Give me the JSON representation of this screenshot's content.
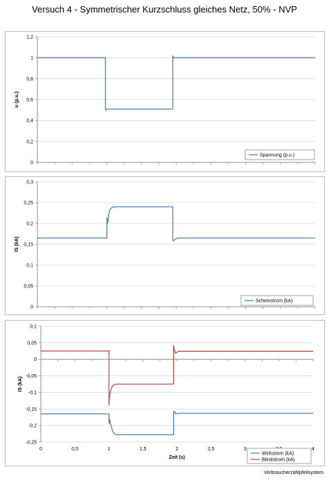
{
  "title": "Versuch 4 - Symmetrischer Kurzschluss gleiches Netz, 50% - NVP",
  "footer": "Verbraucherzählpfeilsystem",
  "colors": {
    "blue": "#4f81bd",
    "red": "#c0504d",
    "grid": "#d9d9d9",
    "axis": "#8c8c8c"
  },
  "chart_data": [
    {
      "type": "line",
      "ylabel": "u (p.u.)",
      "xlabel": "",
      "xlim": [
        0,
        4
      ],
      "ylim": [
        0,
        1.2
      ],
      "yticks": [
        "0",
        "0,2",
        "0,4",
        "0,6",
        "0,8",
        "1",
        "1,2"
      ],
      "xticks": [],
      "legend_position": "bottom-right",
      "series": [
        {
          "name": "Spannung (p.u.)",
          "color": "#4f81bd",
          "x": [
            0,
            0.98,
            0.98,
            0.99,
            0.99,
            1.95,
            1.95,
            1.96,
            1.96,
            4.0
          ],
          "y": [
            1.0,
            1.0,
            0.51,
            0.5,
            0.51,
            0.51,
            1.02,
            1.0,
            1.0,
            1.0
          ]
        }
      ]
    },
    {
      "type": "line",
      "ylabel": "IS (kA)",
      "xlabel": "",
      "xlim": [
        0,
        4
      ],
      "ylim": [
        0,
        0.3
      ],
      "yticks": [
        "0",
        "0,05",
        "0,1",
        "0,15",
        "0,2",
        "0,25",
        "0,3"
      ],
      "xticks": [],
      "legend_position": "bottom-right",
      "series": [
        {
          "name": "Scheinstrom (kA)",
          "color": "#4f81bd",
          "x": [
            0,
            1.0,
            1.0,
            1.01,
            1.02,
            1.03,
            1.05,
            1.08,
            1.12,
            1.95,
            1.95,
            1.96,
            1.98,
            2.02,
            4.0
          ],
          "y": [
            0.165,
            0.165,
            0.215,
            0.2,
            0.21,
            0.225,
            0.235,
            0.239,
            0.24,
            0.24,
            0.16,
            0.158,
            0.162,
            0.165,
            0.165
          ]
        }
      ]
    },
    {
      "type": "line",
      "ylabel": "IS (kA)",
      "xlabel": "Zeit (s)",
      "xlim": [
        0,
        4
      ],
      "ylim": [
        -0.25,
        0.1
      ],
      "yticks": [
        "-0,25",
        "-0,2",
        "-0,15",
        "-0,1",
        "-0,05",
        "0",
        "0,05",
        "0,1"
      ],
      "xticks": [
        "0",
        "0,5",
        "1",
        "1,5",
        "2",
        "2,5",
        "3",
        "3,5",
        "4"
      ],
      "legend_position": "bottom-right",
      "series": [
        {
          "name": "Wirkstrom (kA)",
          "color": "#4f81bd",
          "x": [
            0,
            1.0,
            1.0,
            1.01,
            1.03,
            1.06,
            1.1,
            1.95,
            1.95,
            1.96,
            1.98,
            2.02,
            4.0
          ],
          "y": [
            -0.165,
            -0.165,
            -0.195,
            -0.18,
            -0.2,
            -0.22,
            -0.228,
            -0.228,
            -0.158,
            -0.157,
            -0.165,
            -0.163,
            -0.163
          ]
        },
        {
          "name": "Blindstrom (kA)",
          "color": "#c0504d",
          "x": [
            0,
            1.0,
            1.0,
            1.01,
            1.02,
            1.04,
            1.07,
            1.12,
            1.95,
            1.95,
            1.96,
            1.98,
            2.02,
            4.0
          ],
          "y": [
            0.025,
            0.025,
            -0.14,
            -0.11,
            -0.1,
            -0.085,
            -0.077,
            -0.075,
            -0.075,
            0.042,
            0.03,
            0.018,
            0.024,
            0.024
          ]
        }
      ]
    }
  ]
}
